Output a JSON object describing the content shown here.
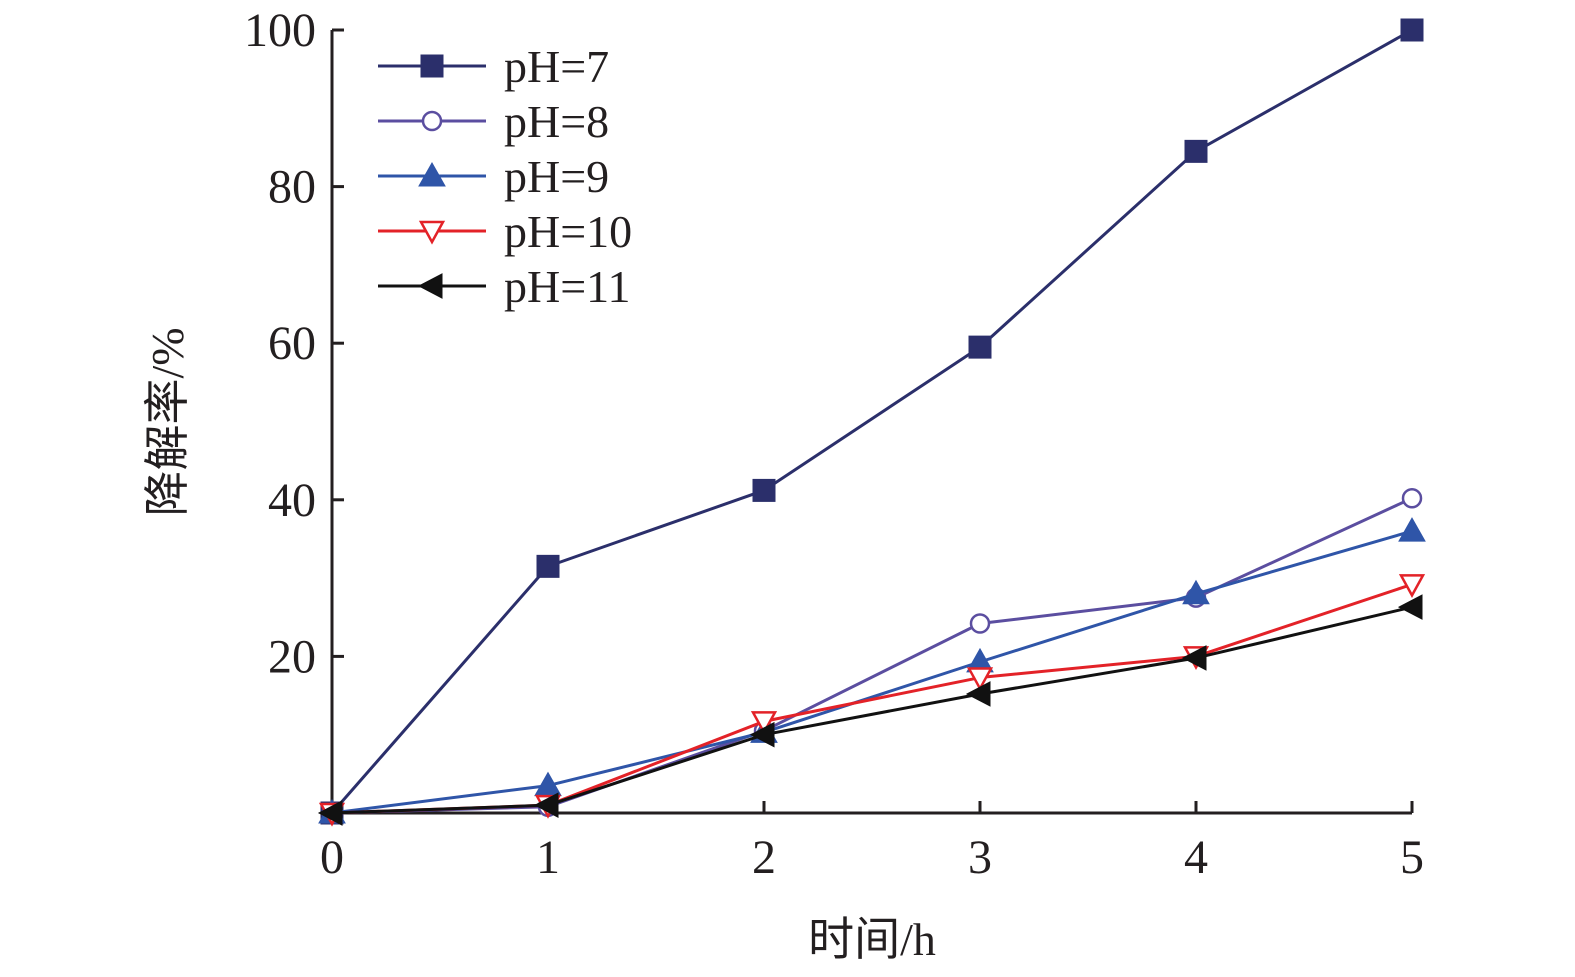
{
  "chart_data": {
    "type": "line",
    "title": "",
    "xlabel": "时间/h",
    "ylabel": "降解率/%",
    "x": [
      0,
      1,
      2,
      3,
      4,
      5
    ],
    "xlim": [
      0,
      5
    ],
    "ylim": [
      0,
      100
    ],
    "x_ticks": [
      "0",
      "1",
      "2",
      "3",
      "4",
      "5"
    ],
    "y_ticks": [
      "20",
      "40",
      "60",
      "80",
      "100"
    ],
    "grid": false,
    "legend_position": "top-left",
    "series": [
      {
        "name": "pH=7",
        "color": "#2b2f6b",
        "marker": "filled-square",
        "values": [
          0,
          31.5,
          41.2,
          59.5,
          84.5,
          100
        ]
      },
      {
        "name": "pH=8",
        "color": "#5b4ea0",
        "marker": "open-circle",
        "values": [
          0,
          0.8,
          10.5,
          24.2,
          27.5,
          40.2
        ]
      },
      {
        "name": "pH=9",
        "color": "#2f55a8",
        "marker": "filled-triangle-up",
        "values": [
          0,
          3.5,
          10.3,
          19.3,
          28.0,
          36.0
        ]
      },
      {
        "name": "pH=10",
        "color": "#e32228",
        "marker": "open-triangle-down",
        "values": [
          0,
          1.0,
          11.7,
          17.3,
          20.0,
          29.2
        ]
      },
      {
        "name": "pH=11",
        "color": "#111111",
        "marker": "filled-triangle-left",
        "values": [
          0,
          1.0,
          10.0,
          15.2,
          19.8,
          26.3
        ]
      }
    ]
  }
}
